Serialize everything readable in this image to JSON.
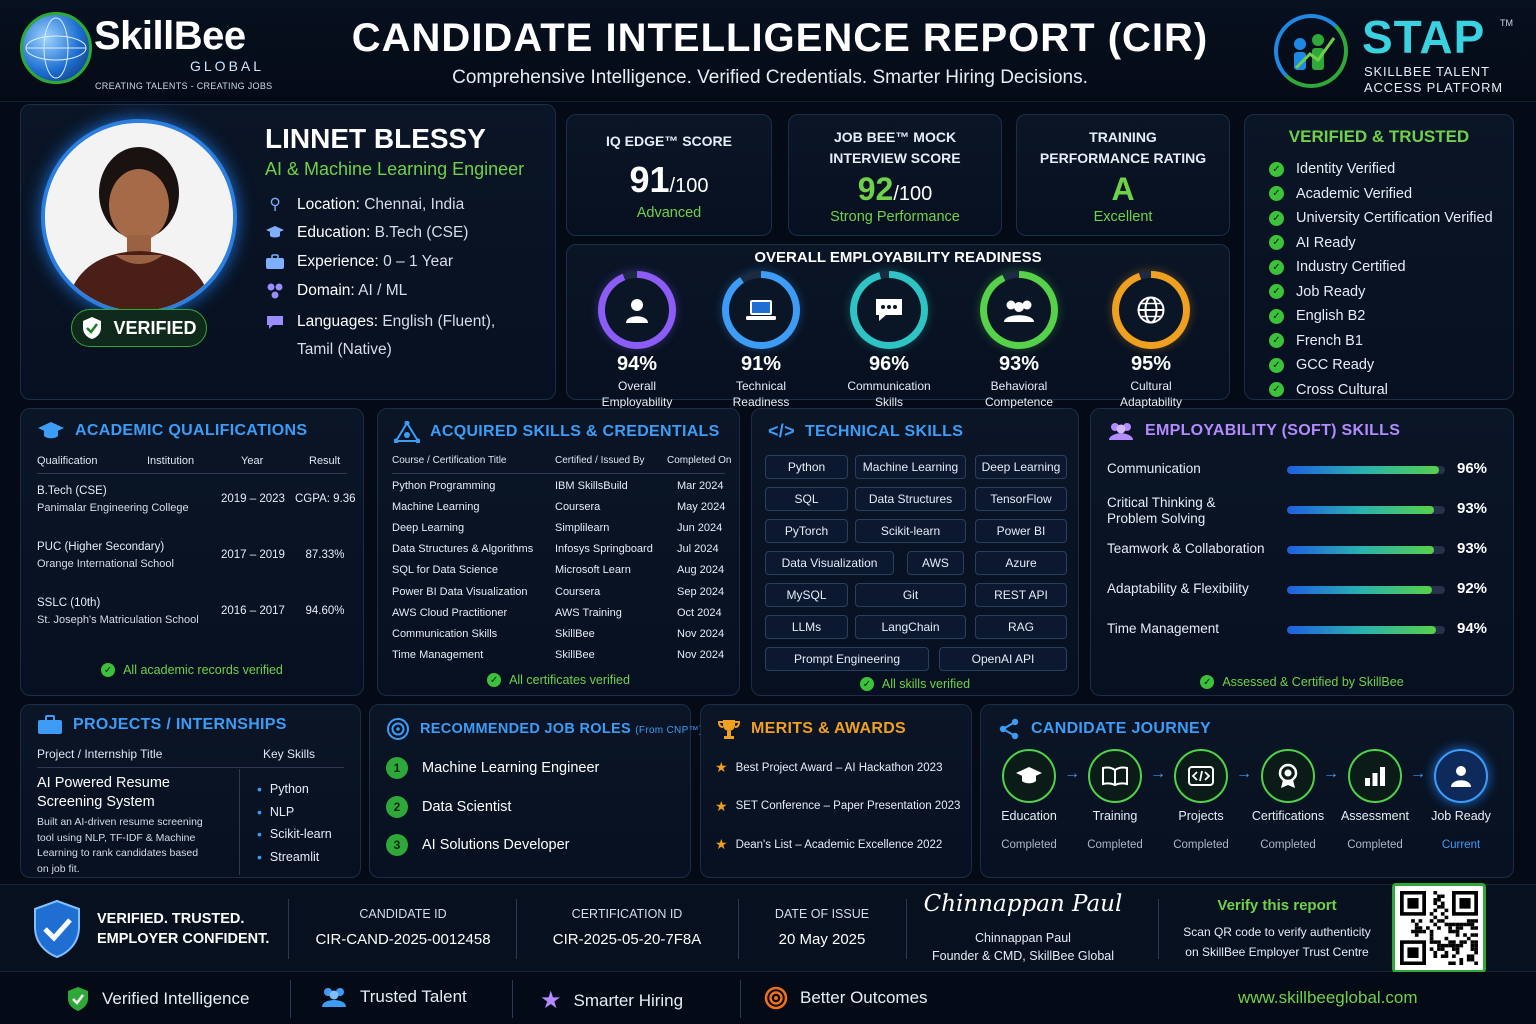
{
  "header": {
    "logo_name": "SkillBee",
    "logo_sub": "GLOBAL",
    "logo_tagline": "CREATING TALENTS - CREATING JOBS",
    "title": "CANDIDATE INTELLIGENCE REPORT (CIR)",
    "subtitle": "Comprehensive Intelligence. Verified Credentials. Smarter Hiring Decisions.",
    "stap_name": "STAP",
    "stap_tm": "TM",
    "stap_line1": "SKILLBEE TALENT",
    "stap_line2": "ACCESS PLATFORM"
  },
  "profile": {
    "name": "LINNET BLESSY",
    "role": "AI & Machine Learning Engineer",
    "verified_badge": "VERIFIED",
    "details": [
      {
        "label": "Location:",
        "value": "Chennai, India",
        "icon": "location-pin-icon"
      },
      {
        "label": "Education:",
        "value": "B.Tech (CSE)",
        "icon": "graduation-cap-icon"
      },
      {
        "label": "Experience:",
        "value": "0 – 1 Year",
        "icon": "briefcase-icon"
      },
      {
        "label": "Domain:",
        "value": "AI / ML",
        "icon": "nodes-icon"
      },
      {
        "label": "Languages:",
        "value": "English (Fluent),",
        "value2": "Tamil (Native)",
        "icon": "chat-icon"
      }
    ]
  },
  "scores": [
    {
      "title_l1": "IQ EDGE™ SCORE",
      "title_l2": "",
      "value": "91",
      "suffix": "/100",
      "rating": "Advanced",
      "value_color": "#ffffff"
    },
    {
      "title_l1": "JOB BEE™ MOCK",
      "title_l2": "INTERVIEW SCORE",
      "value": "92",
      "suffix": "/100",
      "rating": "Strong Performance",
      "value_color": "#6fd14a"
    },
    {
      "title_l1": "TRAINING",
      "title_l2": "PERFORMANCE RATING",
      "value": "A",
      "suffix": "",
      "rating": "Excellent",
      "value_color": "#6fd14a"
    }
  ],
  "readiness": {
    "title": "OVERALL EMPLOYABILITY READINESS",
    "items": [
      {
        "pct": "94%",
        "value": 94,
        "l1": "Overall",
        "l2": "Employability",
        "color": "#8b5cf6",
        "icon": "person-icon"
      },
      {
        "pct": "91%",
        "value": 91,
        "l1": "Technical",
        "l2": "Readiness",
        "color": "#3d9cf5",
        "icon": "laptop-icon"
      },
      {
        "pct": "96%",
        "value": 96,
        "l1": "Communication",
        "l2": "Skills",
        "color": "#2ec4c4",
        "icon": "speech-bubble-icon"
      },
      {
        "pct": "93%",
        "value": 93,
        "l1": "Behavioral",
        "l2": "Competence",
        "color": "#55d14a",
        "icon": "group-icon"
      },
      {
        "pct": "95%",
        "value": 95,
        "l1": "Cultural",
        "l2": "Adaptability",
        "color": "#f0a020",
        "icon": "globe-icon"
      }
    ]
  },
  "verified": {
    "title": "VERIFIED & TRUSTED",
    "items": [
      "Identity Verified",
      "Academic Verified",
      "University Certification Verified",
      "AI Ready",
      "Industry Certified",
      "Job Ready",
      "English B2",
      "French B1",
      "GCC Ready",
      "Cross Cultural"
    ]
  },
  "academic": {
    "title": "ACADEMIC QUALIFICATIONS",
    "headers": [
      "Qualification",
      "Institution",
      "Year",
      "Result"
    ],
    "rows": [
      {
        "q": "B.Tech (CSE)",
        "inst": "Panimalar Engineering College",
        "year": "2019 – 2023",
        "result": "CGPA: 9.36"
      },
      {
        "q": "PUC (Higher Secondary)",
        "inst": "Orange International School",
        "year": "2017 – 2019",
        "result": "87.33%"
      },
      {
        "q": "SSLC (10th)",
        "inst": "St. Joseph's Matriculation School",
        "year": "2016 – 2017",
        "result": "94.60%"
      }
    ],
    "footer": "All academic records verified"
  },
  "acquired": {
    "title": "ACQUIRED SKILLS & CREDENTIALS",
    "headers": [
      "Course / Certification Title",
      "Certified / Issued By",
      "Completed On"
    ],
    "rows": [
      [
        "Python Programming",
        "IBM SkillsBuild",
        "Mar 2024"
      ],
      [
        "Machine Learning",
        "Coursera",
        "May 2024"
      ],
      [
        "Deep Learning",
        "Simplilearn",
        "Jun 2024"
      ],
      [
        "Data Structures & Algorithms",
        "Infosys Springboard",
        "Jul 2024"
      ],
      [
        "SQL for Data Science",
        "Microsoft Learn",
        "Aug 2024"
      ],
      [
        "Power BI Data Visualization",
        "Coursera",
        "Sep 2024"
      ],
      [
        "AWS Cloud Practitioner",
        "AWS Training",
        "Oct 2024"
      ],
      [
        "Communication Skills",
        "SkillBee",
        "Nov 2024"
      ],
      [
        "Time Management",
        "SkillBee",
        "Nov 2024"
      ]
    ],
    "footer": "All certificates verified"
  },
  "technical": {
    "title": "TECHNICAL SKILLS",
    "rows": [
      [
        "Python",
        "Machine Learning",
        "Deep Learning"
      ],
      [
        "SQL",
        "Data Structures",
        "TensorFlow"
      ],
      [
        "PyTorch",
        "Scikit-learn",
        "Power BI"
      ],
      [
        "Data Visualization",
        "AWS",
        "Azure"
      ],
      [
        "MySQL",
        "Git",
        "REST API"
      ],
      [
        "LLMs",
        "LangChain",
        "RAG"
      ],
      [
        "Prompt Engineering",
        "OpenAI API"
      ]
    ],
    "footer": "All skills verified"
  },
  "soft": {
    "title": "EMPLOYABILITY (SOFT) SKILLS",
    "items": [
      {
        "l1": "Communication",
        "l2": "",
        "pct": "96%",
        "value": 96
      },
      {
        "l1": "Critical Thinking &",
        "l2": "Problem Solving",
        "pct": "93%",
        "value": 93
      },
      {
        "l1": "Teamwork & Collaboration",
        "l2": "",
        "pct": "93%",
        "value": 93
      },
      {
        "l1": "Adaptability & Flexibility",
        "l2": "",
        "pct": "92%",
        "value": 92
      },
      {
        "l1": "Time Management",
        "l2": "",
        "pct": "94%",
        "value": 94
      }
    ],
    "footer": "Assessed & Certified by SkillBee"
  },
  "projects": {
    "title": "PROJECTS / INTERNSHIPS",
    "col1": "Project / Internship Title",
    "col2": "Key Skills",
    "project_l1": "AI Powered Resume",
    "project_l2": "Screening System",
    "desc": [
      "Built an AI-driven resume screening",
      "tool using NLP, TF-IDF & Machine",
      "Learning to rank candidates based",
      "on job fit."
    ],
    "skills": [
      "Python",
      "NLP",
      "Scikit-learn",
      "Streamlit"
    ]
  },
  "jobs": {
    "title": "RECOMMENDED JOB ROLES",
    "title_small": "(From CNP™)",
    "items": [
      "Machine Learning Engineer",
      "Data Scientist",
      "AI Solutions Developer"
    ]
  },
  "merits": {
    "title": "MERITS & AWARDS",
    "items": [
      "Best Project Award – AI Hackathon 2023",
      "SET Conference – Paper Presentation 2023",
      "Dean's List – Academic Excellence 2022"
    ]
  },
  "journey": {
    "title": "CANDIDATE JOURNEY",
    "steps": [
      {
        "label": "Education",
        "status": "Completed",
        "icon": "graduation-cap-icon"
      },
      {
        "label": "Training",
        "status": "Completed",
        "icon": "book-icon"
      },
      {
        "label": "Projects",
        "status": "Completed",
        "icon": "code-icon"
      },
      {
        "label": "Certifications",
        "status": "Completed",
        "icon": "medal-icon"
      },
      {
        "label": "Assessment",
        "status": "Completed",
        "icon": "bar-chart-icon"
      },
      {
        "label": "Job Ready",
        "status": "Current",
        "icon": "user-badge-icon"
      }
    ]
  },
  "bottom": {
    "trust_l1": "VERIFIED. TRUSTED.",
    "trust_l2": "EMPLOYER CONFIDENT.",
    "cand_label": "CANDIDATE ID",
    "cand_value": "CIR-CAND-2025-0012458",
    "cert_label": "CERTIFICATION ID",
    "cert_value": "CIR-2025-05-20-7F8A",
    "date_label": "DATE OF ISSUE",
    "date_value": "20 May 2025",
    "signature": "Chinnappan Paul",
    "signer": "Chinnappan Paul",
    "signer_title": "Founder & CMD, SkillBee Global",
    "verify_title": "Verify this report",
    "verify_l1": "Scan QR code to verify authenticity",
    "verify_l2": "on SkillBee Employer Trust Centre"
  },
  "footer": {
    "items": [
      {
        "label": "Verified Intelligence",
        "icon": "shield-check-icon"
      },
      {
        "label": "Trusted Talent",
        "icon": "people-icon"
      },
      {
        "label": "Smarter Hiring",
        "icon": "star-icon"
      },
      {
        "label": "Better Outcomes",
        "icon": "target-icon"
      }
    ],
    "url": "www.skillbeeglobal.com"
  }
}
